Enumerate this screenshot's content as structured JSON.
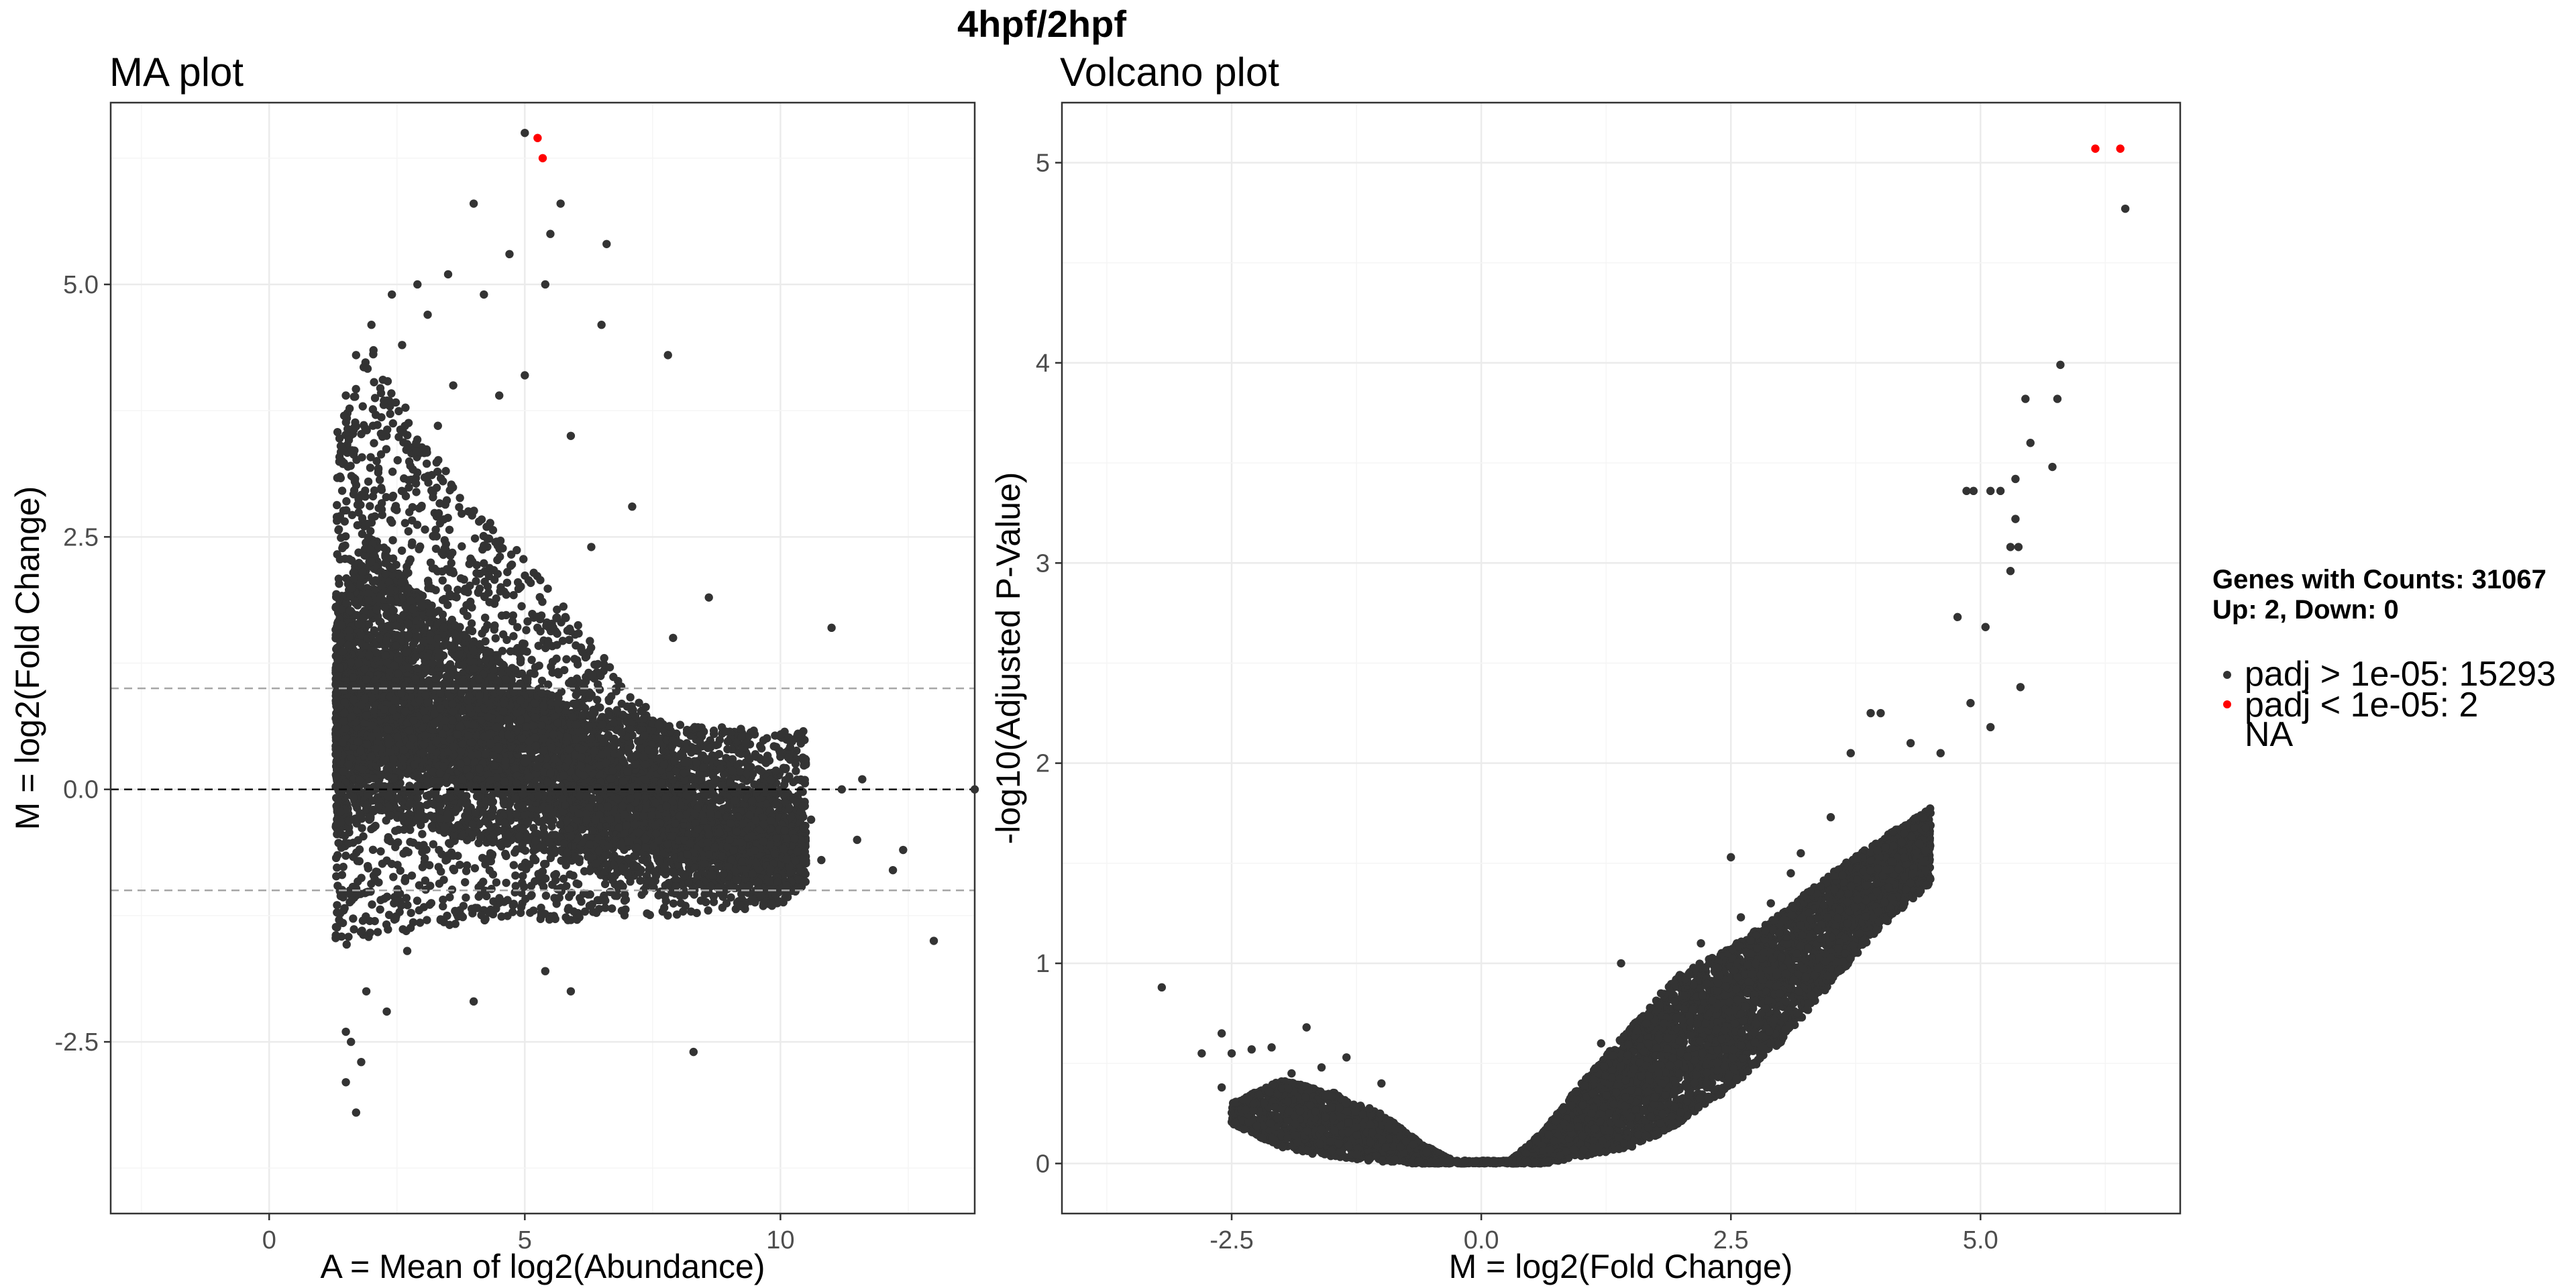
{
  "page": {
    "title": "4hpf/2hpf"
  },
  "legend": {
    "header_line1": "Genes with Counts: 31067",
    "header_line2": "Up: 2, Down: 0",
    "items": [
      {
        "label": "padj > 1e-05: 15293",
        "color": "#333333"
      },
      {
        "label": "padj < 1e-05: 2",
        "color": "#ff0000"
      },
      {
        "label": "NA",
        "color": ""
      }
    ]
  },
  "chart_data": [
    {
      "type": "scatter",
      "title": "MA plot",
      "xlabel": "A = Mean of log2(Abundance)",
      "ylabel": "M = log2(Fold Change)",
      "xlim": [
        -3.1,
        13.8
      ],
      "ylim": [
        -4.2,
        6.8
      ],
      "x_ticks": [
        0,
        5,
        10
      ],
      "x_tick_labels": [
        "0",
        "5",
        "10"
      ],
      "y_ticks": [
        -2.5,
        0,
        2.5,
        5
      ],
      "y_tick_labels": [
        "-2.5",
        "0.0",
        "2.5",
        "5.0"
      ],
      "grid": true,
      "reference_lines": [
        {
          "y": 0,
          "style": "dashed",
          "color": "#000000"
        },
        {
          "y": 1,
          "style": "dashed",
          "color": "#a6a6a6"
        },
        {
          "y": -1,
          "style": "dashed",
          "color": "#a6a6a6"
        }
      ],
      "point_color": "#333333",
      "highlight_color": "#ff0000",
      "points": [
        [
          5.0,
          6.5
        ],
        [
          4.0,
          5.8
        ],
        [
          5.7,
          5.8
        ],
        [
          6.6,
          5.4
        ],
        [
          4.7,
          5.3
        ],
        [
          5.5,
          5.5
        ],
        [
          3.5,
          5.1
        ],
        [
          7.8,
          4.3
        ],
        [
          4.2,
          4.9
        ],
        [
          3.1,
          4.7
        ],
        [
          5.4,
          5.0
        ],
        [
          2.6,
          4.4
        ],
        [
          6.5,
          4.6
        ],
        [
          5.0,
          4.1
        ],
        [
          4.5,
          3.9
        ],
        [
          7.1,
          2.8
        ],
        [
          5.9,
          3.5
        ],
        [
          6.3,
          2.4
        ],
        [
          11.0,
          1.6
        ],
        [
          8.6,
          1.9
        ],
        [
          7.9,
          1.5
        ],
        [
          12.4,
          -0.6
        ],
        [
          12.2,
          -0.8
        ],
        [
          13.0,
          -1.5
        ],
        [
          11.5,
          -0.5
        ],
        [
          10.8,
          -0.7
        ],
        [
          8.3,
          -2.6
        ],
        [
          4.0,
          -2.1
        ],
        [
          2.3,
          -2.2
        ],
        [
          1.7,
          -3.2
        ],
        [
          1.5,
          -2.9
        ],
        [
          1.6,
          -2.5
        ],
        [
          1.5,
          -2.4
        ],
        [
          1.8,
          -2.7
        ],
        [
          1.9,
          -2.0
        ],
        [
          2.7,
          -1.6
        ],
        [
          5.9,
          -2.0
        ],
        [
          5.4,
          -1.8
        ],
        [
          1.4,
          3.4
        ],
        [
          1.5,
          3.9
        ],
        [
          1.7,
          4.3
        ],
        [
          2.0,
          4.6
        ],
        [
          2.4,
          4.9
        ],
        [
          2.9,
          5.0
        ],
        [
          3.6,
          4.0
        ],
        [
          3.3,
          3.6
        ],
        [
          13.8,
          0.0
        ],
        [
          11.6,
          0.1
        ],
        [
          11.2,
          0.0
        ],
        [
          10.6,
          -0.3
        ],
        [
          10.1,
          0.2
        ],
        [
          9.4,
          0.3
        ]
      ],
      "highlight_points": [
        [
          5.25,
          6.45
        ],
        [
          5.35,
          6.25
        ]
      ],
      "density_cloud": [
        {
          "x": 1.3,
          "upper": 3.5,
          "lower": -1.6
        },
        {
          "x": 2.0,
          "upper": 4.4,
          "lower": -1.5
        },
        {
          "x": 3.0,
          "upper": 3.5,
          "lower": -1.4
        },
        {
          "x": 4.0,
          "upper": 2.8,
          "lower": -1.3
        },
        {
          "x": 5.0,
          "upper": 2.3,
          "lower": -1.3
        },
        {
          "x": 6.0,
          "upper": 1.7,
          "lower": -1.3
        },
        {
          "x": 7.0,
          "upper": 1.0,
          "lower": -1.3
        },
        {
          "x": 8.0,
          "upper": 0.5,
          "lower": -1.25
        },
        {
          "x": 9.0,
          "upper": 0.25,
          "lower": -1.2
        },
        {
          "x": 10.0,
          "upper": 0.0,
          "lower": -1.15
        },
        {
          "x": 10.5,
          "upper": -0.15,
          "lower": -0.95
        }
      ]
    },
    {
      "type": "scatter",
      "title": "Volcano plot",
      "xlabel": "M = log2(Fold Change)",
      "ylabel": "-log10(Adjusted P-Value)",
      "xlim": [
        -4.2,
        7.0
      ],
      "ylim": [
        -0.25,
        5.3
      ],
      "x_ticks": [
        -2.5,
        0,
        2.5,
        5
      ],
      "x_tick_labels": [
        "-2.5",
        "0.0",
        "2.5",
        "5.0"
      ],
      "y_ticks": [
        0,
        1,
        2,
        3,
        4,
        5
      ],
      "y_tick_labels": [
        "0",
        "1",
        "2",
        "3",
        "4",
        "5"
      ],
      "grid": true,
      "point_color": "#333333",
      "highlight_color": "#ff0000",
      "points": [
        [
          -3.2,
          0.88
        ],
        [
          -2.8,
          0.55
        ],
        [
          -2.6,
          0.65
        ],
        [
          -2.5,
          0.55
        ],
        [
          -2.3,
          0.57
        ],
        [
          -2.1,
          0.58
        ],
        [
          -1.75,
          0.68
        ],
        [
          -1.35,
          0.53
        ],
        [
          -1.9,
          0.45
        ],
        [
          -2.6,
          0.38
        ],
        [
          -1.6,
          0.48
        ],
        [
          -1.0,
          0.4
        ],
        [
          6.45,
          4.77
        ],
        [
          5.8,
          3.99
        ],
        [
          5.77,
          3.82
        ],
        [
          5.45,
          3.82
        ],
        [
          5.5,
          3.6
        ],
        [
          5.72,
          3.48
        ],
        [
          5.35,
          3.42
        ],
        [
          5.35,
          3.22
        ],
        [
          5.3,
          3.08
        ],
        [
          5.38,
          3.08
        ],
        [
          5.3,
          2.96
        ],
        [
          5.1,
          3.36
        ],
        [
          5.2,
          3.36
        ],
        [
          4.93,
          3.36
        ],
        [
          4.86,
          3.36
        ],
        [
          5.05,
          2.68
        ],
        [
          4.77,
          2.73
        ],
        [
          5.4,
          2.38
        ],
        [
          5.1,
          2.18
        ],
        [
          4.9,
          2.3
        ],
        [
          4.6,
          2.05
        ],
        [
          4.0,
          2.25
        ],
        [
          3.9,
          2.25
        ],
        [
          4.3,
          2.1
        ],
        [
          3.7,
          2.05
        ],
        [
          3.1,
          1.45
        ],
        [
          2.6,
          1.23
        ],
        [
          1.4,
          1.0
        ],
        [
          1.8,
          0.85
        ],
        [
          2.2,
          1.1
        ],
        [
          3.2,
          1.55
        ],
        [
          3.5,
          1.73
        ],
        [
          2.5,
          1.53
        ],
        [
          1.65,
          0.7
        ],
        [
          1.2,
          0.6
        ],
        [
          2.9,
          1.3
        ]
      ],
      "highlight_points": [
        [
          6.15,
          5.07
        ],
        [
          6.4,
          5.07
        ]
      ],
      "density_cloud": {
        "left": [
          {
            "x": -2.5,
            "upper": 0.3,
            "lower": 0.2
          },
          {
            "x": -2.0,
            "upper": 0.42,
            "lower": 0.08
          },
          {
            "x": -1.5,
            "upper": 0.36,
            "lower": 0.03
          },
          {
            "x": -1.0,
            "upper": 0.25,
            "lower": 0.01
          },
          {
            "x": -0.6,
            "upper": 0.1,
            "lower": 0.0
          },
          {
            "x": -0.3,
            "upper": 0.02,
            "lower": 0.0
          }
        ],
        "right": [
          {
            "x": 0.3,
            "upper": 0.02,
            "lower": 0.0
          },
          {
            "x": 0.6,
            "upper": 0.15,
            "lower": 0.0
          },
          {
            "x": 1.0,
            "upper": 0.4,
            "lower": 0.03
          },
          {
            "x": 1.5,
            "upper": 0.68,
            "lower": 0.08
          },
          {
            "x": 2.0,
            "upper": 0.95,
            "lower": 0.2
          },
          {
            "x": 2.5,
            "upper": 1.08,
            "lower": 0.38
          },
          {
            "x": 3.0,
            "upper": 1.25,
            "lower": 0.6
          },
          {
            "x": 3.5,
            "upper": 1.45,
            "lower": 0.9
          },
          {
            "x": 4.0,
            "upper": 1.62,
            "lower": 1.18
          },
          {
            "x": 4.5,
            "upper": 1.78,
            "lower": 1.4
          }
        ]
      }
    }
  ]
}
